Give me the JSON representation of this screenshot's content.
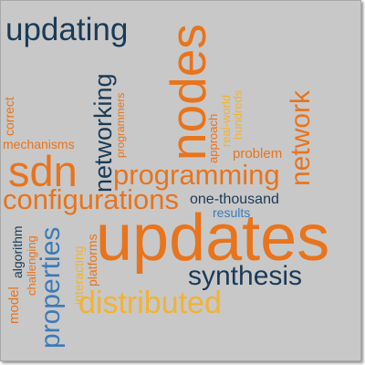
{
  "colors": {
    "navy": "#1b3a57",
    "orange": "#e8741c",
    "gold": "#f2b233",
    "blue": "#3d7ab8",
    "background": "#c8c8c8"
  },
  "words": {
    "updating": "updating",
    "nodes": "nodes",
    "networking": "networking",
    "network": "network",
    "correct": "correct",
    "mechanisms": "mechanisms",
    "programmers": "programmers",
    "approach": "approach",
    "real_world": "real-world",
    "hundreds": "hundreds",
    "problem": "problem",
    "sdn": "sdn",
    "programming": "programming",
    "configurations": "configurations",
    "one_thousand": "one-thousand",
    "results": "results",
    "updates": "updates",
    "model": "model",
    "algorithm": "algorithm",
    "challenging": "challenging",
    "properties": "properties",
    "interacting": "interacting",
    "platforms": "platforms",
    "synthesis": "synthesis",
    "distributed": "distributed"
  }
}
